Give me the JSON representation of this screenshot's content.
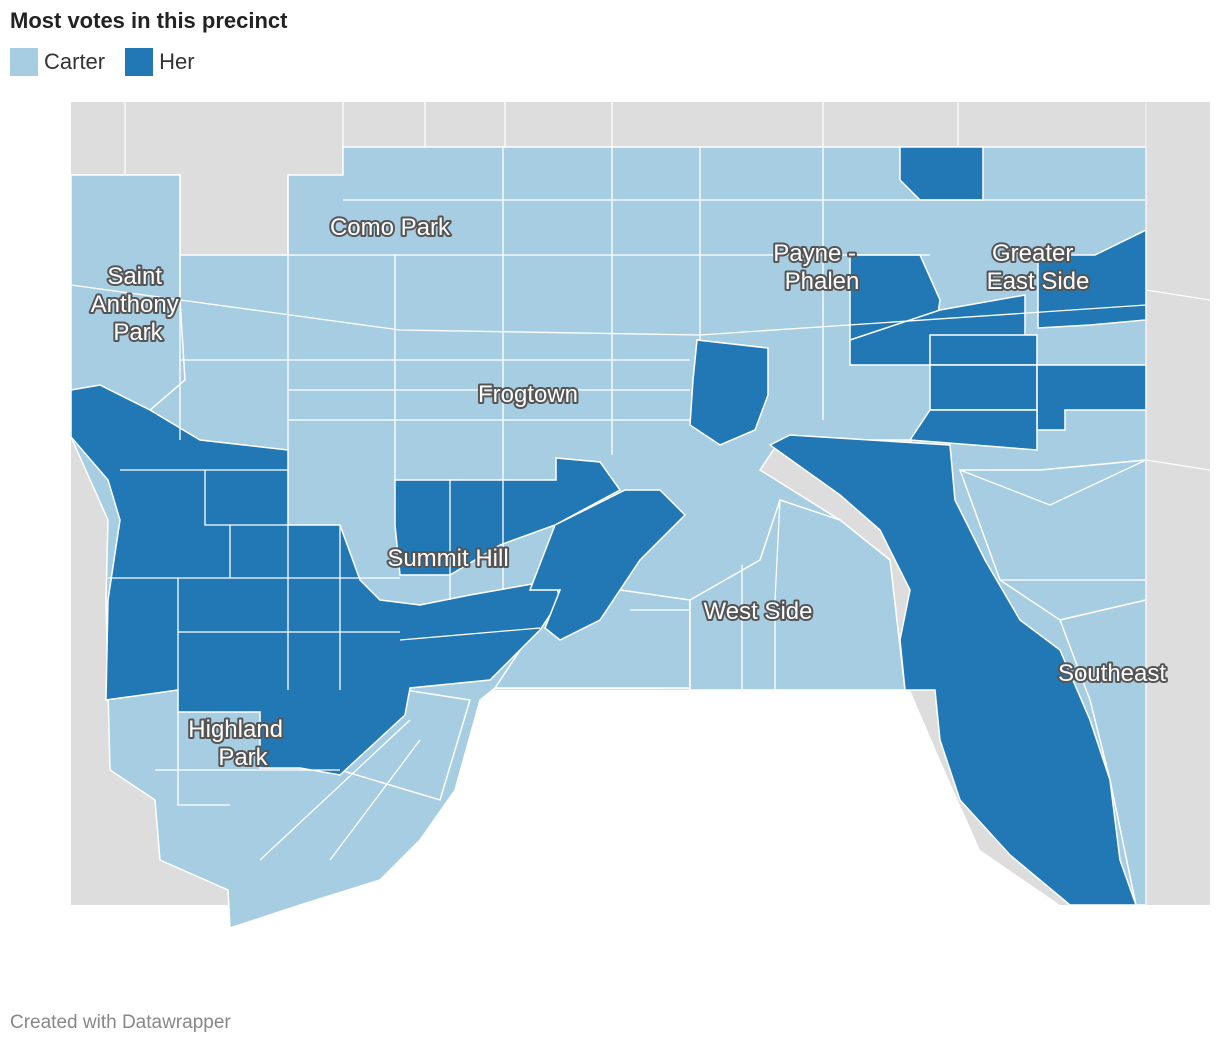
{
  "title": "Most votes in this precinct",
  "legend": [
    {
      "label": "Carter",
      "color": "#a6cde2"
    },
    {
      "label": "Her",
      "color": "#2178b4"
    }
  ],
  "colors": {
    "background_land": "#dddddd",
    "boundary": "#ffffff",
    "label_halo": "#555555"
  },
  "neighborhoods": {
    "saint_anthony_park": [
      "Saint",
      "Anthony",
      "Park"
    ],
    "como_park": "Como Park",
    "payne_phalen": [
      "Payne -",
      "Phalen"
    ],
    "greater_east_side": [
      "Greater",
      "East Side"
    ],
    "frogtown": "Frogtown",
    "summit_hill": "Summit Hill",
    "west_side": "West Side",
    "highland_park": [
      "Highland",
      "Park"
    ],
    "southeast": "Southeast"
  },
  "credit": "Created with Datawrapper"
}
